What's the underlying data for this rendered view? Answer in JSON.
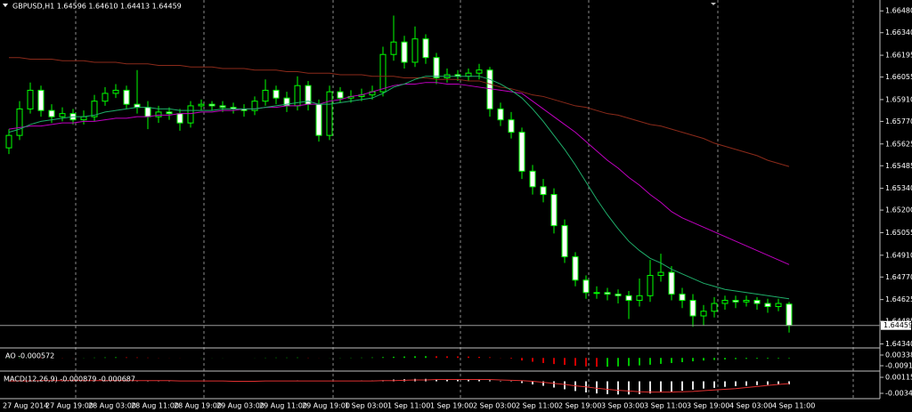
{
  "chart_data": [
    {
      "type": "candlestick",
      "title": "GBPUSD,H1  1.64596 1.64610 1.64413 1.64459",
      "categories": [
        "27 Aug 2014",
        null,
        null,
        null,
        "27 Aug 19:00",
        null,
        null,
        null,
        "28 Aug 03:00",
        null,
        null,
        null,
        "28 Aug 11:00",
        null,
        null,
        null,
        "28 Aug 19:00",
        null,
        null,
        null,
        "29 Aug 03:00",
        null,
        null,
        null,
        "29 Aug 11:00",
        null,
        null,
        null,
        "29 Aug 19:00",
        null,
        null,
        null,
        "1 Sep 03:00",
        null,
        null,
        null,
        "1 Sep 11:00",
        null,
        null,
        null,
        "1 Sep 19:00",
        null,
        null,
        null,
        "2 Sep 03:00",
        null,
        null,
        null,
        "2 Sep 11:00",
        null,
        null,
        null,
        "2 Sep 19:00",
        null,
        null,
        null,
        "3 Sep 03:00",
        null,
        null,
        null,
        "3 Sep 11:00",
        null,
        null,
        null,
        "3 Sep 19:00",
        null,
        null,
        null,
        "4 Sep 03:00",
        null,
        null,
        null,
        "4 Sep 11:00",
        null
      ],
      "open": [
        1.656,
        1.6568,
        1.6585,
        1.6597,
        1.6584,
        1.658,
        1.6582,
        1.6578,
        1.658,
        1.659,
        1.6595,
        1.6597,
        1.6588,
        1.6586,
        1.658,
        1.6583,
        1.6582,
        1.6576,
        1.6587,
        1.6588,
        1.6587,
        1.6586,
        1.6585,
        1.6584,
        1.659,
        1.6597,
        1.6592,
        1.6587,
        1.66,
        1.6588,
        1.6568,
        1.6596,
        1.6592,
        1.6593,
        1.6594,
        1.6596,
        1.662,
        1.6628,
        1.6615,
        1.663,
        1.6618,
        1.6605,
        1.6607,
        1.6606,
        1.6608,
        1.661,
        1.6585,
        1.6578,
        1.657,
        1.6545,
        1.6535,
        1.653,
        1.651,
        1.649,
        1.6475,
        1.6467,
        1.6467,
        1.6466,
        1.6465,
        1.6462,
        1.6465,
        1.6478,
        1.648,
        1.6466,
        1.6462,
        1.6452,
        1.6455,
        1.646,
        1.6462,
        1.6461,
        1.6462,
        1.646,
        1.6458,
        1.64596
      ],
      "high": [
        1.6572,
        1.659,
        1.6602,
        1.66,
        1.6588,
        1.6586,
        1.6585,
        1.6584,
        1.6594,
        1.6599,
        1.6601,
        1.66,
        1.661,
        1.659,
        1.6587,
        1.6586,
        1.6585,
        1.659,
        1.6591,
        1.659,
        1.659,
        1.6589,
        1.6588,
        1.6593,
        1.6604,
        1.66,
        1.6596,
        1.6606,
        1.6603,
        1.6591,
        1.66,
        1.6599,
        1.6597,
        1.6598,
        1.66,
        1.6625,
        1.6645,
        1.6632,
        1.6638,
        1.6633,
        1.6621,
        1.6611,
        1.661,
        1.6611,
        1.6614,
        1.6612,
        1.6589,
        1.6583,
        1.6573,
        1.6549,
        1.654,
        1.6534,
        1.6514,
        1.6493,
        1.6478,
        1.6471,
        1.647,
        1.6469,
        1.6468,
        1.6476,
        1.6488,
        1.6492,
        1.6484,
        1.647,
        1.6466,
        1.6459,
        1.6464,
        1.6465,
        1.6465,
        1.6465,
        1.6464,
        1.6463,
        1.6463,
        1.6461
      ],
      "low": [
        1.6556,
        1.6565,
        1.6582,
        1.658,
        1.6576,
        1.6577,
        1.6575,
        1.6575,
        1.6577,
        1.6587,
        1.6592,
        1.6585,
        1.6582,
        1.6572,
        1.6576,
        1.6578,
        1.6571,
        1.6573,
        1.6584,
        1.6584,
        1.6583,
        1.6582,
        1.658,
        1.6581,
        1.6587,
        1.6588,
        1.6583,
        1.6584,
        1.6584,
        1.6564,
        1.6565,
        1.6589,
        1.6589,
        1.659,
        1.6591,
        1.6593,
        1.6616,
        1.6611,
        1.6612,
        1.6614,
        1.6601,
        1.6602,
        1.6603,
        1.6603,
        1.6604,
        1.658,
        1.6574,
        1.6566,
        1.654,
        1.653,
        1.6525,
        1.6505,
        1.6486,
        1.6471,
        1.6463,
        1.6463,
        1.6462,
        1.646,
        1.645,
        1.6458,
        1.6461,
        1.6474,
        1.6462,
        1.6457,
        1.6445,
        1.6446,
        1.6451,
        1.6456,
        1.6457,
        1.6458,
        1.6456,
        1.6454,
        1.6455,
        1.64413
      ],
      "close": [
        1.6568,
        1.6585,
        1.6597,
        1.6584,
        1.658,
        1.6582,
        1.6578,
        1.658,
        1.659,
        1.6595,
        1.6597,
        1.6588,
        1.6586,
        1.658,
        1.6583,
        1.6582,
        1.6576,
        1.6587,
        1.6588,
        1.6587,
        1.6586,
        1.6585,
        1.6584,
        1.659,
        1.6597,
        1.6592,
        1.6587,
        1.66,
        1.6588,
        1.6568,
        1.6596,
        1.6592,
        1.6593,
        1.6594,
        1.6596,
        1.662,
        1.6628,
        1.6615,
        1.663,
        1.6618,
        1.6605,
        1.6607,
        1.6606,
        1.6608,
        1.661,
        1.6585,
        1.6578,
        1.657,
        1.6545,
        1.6535,
        1.653,
        1.651,
        1.649,
        1.6475,
        1.6467,
        1.6467,
        1.6466,
        1.6465,
        1.6462,
        1.6465,
        1.6478,
        1.648,
        1.6466,
        1.6462,
        1.6452,
        1.6455,
        1.646,
        1.6462,
        1.6461,
        1.6462,
        1.646,
        1.6458,
        1.646,
        1.64459
      ],
      "series": [
        {
          "color": "#8b2a1a",
          "values": [
            1.6618,
            1.6618,
            1.6617,
            1.6617,
            1.6617,
            1.6616,
            1.6616,
            1.6616,
            1.6615,
            1.6615,
            1.6615,
            1.6614,
            1.6614,
            1.6614,
            1.6613,
            1.6613,
            1.6613,
            1.6612,
            1.6612,
            1.6612,
            1.6611,
            1.6611,
            1.6611,
            1.661,
            1.661,
            1.661,
            1.6609,
            1.6609,
            1.6608,
            1.6608,
            1.6608,
            1.6607,
            1.6607,
            1.6607,
            1.6606,
            1.6606,
            1.6606,
            1.6605,
            1.6605,
            1.6605,
            1.6604,
            1.6604,
            1.6604,
            1.6603,
            1.6603,
            1.6601,
            1.6599,
            1.6598,
            1.6596,
            1.6594,
            1.6593,
            1.6591,
            1.6589,
            1.6587,
            1.6586,
            1.6584,
            1.6582,
            1.6581,
            1.6579,
            1.6577,
            1.6575,
            1.6574,
            1.6572,
            1.657,
            1.6568,
            1.6566,
            1.6563,
            1.6561,
            1.6559,
            1.6557,
            1.6555,
            1.6552,
            1.655,
            1.6548
          ]
        },
        {
          "color": "#c000c0",
          "values": [
            1.6572,
            1.6573,
            1.6574,
            1.6574,
            1.6575,
            1.6576,
            1.6576,
            1.6577,
            1.6577,
            1.6578,
            1.6579,
            1.6579,
            1.658,
            1.658,
            1.6581,
            1.6581,
            1.6582,
            1.6582,
            1.6583,
            1.6583,
            1.6584,
            1.6584,
            1.6585,
            1.6585,
            1.6586,
            1.6586,
            1.6587,
            1.6587,
            1.6588,
            1.6588,
            1.659,
            1.6591,
            1.6593,
            1.6594,
            1.6596,
            1.6598,
            1.66,
            1.6601,
            1.6601,
            1.6602,
            1.6602,
            1.6601,
            1.6601,
            1.66,
            1.6599,
            1.6598,
            1.6597,
            1.6596,
            1.6595,
            1.659,
            1.6585,
            1.658,
            1.6575,
            1.657,
            1.6564,
            1.6558,
            1.6552,
            1.6547,
            1.6541,
            1.6536,
            1.653,
            1.6525,
            1.6519,
            1.6515,
            1.6512,
            1.6509,
            1.6506,
            1.6503,
            1.65,
            1.6497,
            1.6494,
            1.6491,
            1.6488,
            1.6485
          ]
        },
        {
          "color": "#1fae6a",
          "values": [
            1.657,
            1.6572,
            1.6575,
            1.6577,
            1.6578,
            1.6579,
            1.658,
            1.658,
            1.6581,
            1.6583,
            1.6584,
            1.6585,
            1.6586,
            1.6586,
            1.6585,
            1.6585,
            1.6584,
            1.6584,
            1.6584,
            1.6584,
            1.6585,
            1.6585,
            1.6585,
            1.6585,
            1.6586,
            1.6587,
            1.6588,
            1.6589,
            1.659,
            1.6588,
            1.6588,
            1.6589,
            1.659,
            1.6591,
            1.6592,
            1.6595,
            1.6599,
            1.6601,
            1.6604,
            1.6606,
            1.6606,
            1.6606,
            1.6606,
            1.6606,
            1.6606,
            1.6604,
            1.6601,
            1.6597,
            1.6592,
            1.6585,
            1.6577,
            1.6568,
            1.6559,
            1.6549,
            1.6538,
            1.6527,
            1.6517,
            1.6508,
            1.65,
            1.6494,
            1.6489,
            1.6486,
            1.6482,
            1.6479,
            1.6476,
            1.6473,
            1.6471,
            1.6469,
            1.6468,
            1.6467,
            1.6466,
            1.6465,
            1.6464,
            1.6463
          ]
        }
      ],
      "ylim": [
        1.6432,
        1.6655
      ],
      "yticks": [
        {
          "value": 1.6648,
          "label": "1.66480"
        },
        {
          "value": 1.6634,
          "label": "1.66340"
        },
        1.66195,
        1.66055,
        {
          "value": 1.6591,
          "label": "1.65910"
        },
        {
          "value": 1.6577,
          "label": "1.65770"
        },
        1.65625,
        1.65485,
        {
          "value": 1.6534,
          "label": "1.65340"
        },
        {
          "value": 1.652,
          "label": "1.65200"
        },
        1.65055,
        {
          "value": 1.6491,
          "label": "1.64910"
        },
        {
          "value": 1.6477,
          "label": "1.64770"
        },
        1.64625,
        1.64485,
        {
          "value": 1.6434,
          "label": "1.64340"
        }
      ],
      "wick_color": "#00ff00",
      "bull_body": "#000000",
      "bear_body": "#ffffff",
      "grid": true
    },
    {
      "type": "bar",
      "title": "AO -0.000572",
      "values": [
        0.0003,
        0.0005,
        0.0006,
        0.0005,
        0.0004,
        0.0002,
        0.0001,
        0.0002,
        0.0004,
        0.0006,
        0.0008,
        0.0007,
        0.0006,
        0.0004,
        0.0002,
        0.0001,
        -0.0001,
        0,
        0.0001,
        0.0001,
        0.0001,
        0,
        0,
        0.0001,
        0.0003,
        0.0004,
        0.0004,
        0.0005,
        0.0003,
        -0.0001,
        0.0001,
        0.0002,
        0.0003,
        0.0004,
        0.0006,
        0.001,
        0.0014,
        0.0017,
        0.002,
        0.0021,
        0.002,
        0.0019,
        0.0018,
        0.0016,
        0.0013,
        0.0008,
        0.0002,
        -0.0008,
        -0.003,
        -0.0045,
        -0.006,
        -0.0072,
        -0.0082,
        -0.0092,
        -0.01,
        -0.0104,
        -0.0104,
        -0.01,
        -0.0095,
        -0.0088,
        -0.008,
        -0.007,
        -0.006,
        -0.005,
        -0.004,
        -0.0031,
        -0.0024,
        -0.0018,
        -0.0014,
        -0.0011,
        -0.0009,
        -0.0008,
        -0.0007,
        -0.000572
      ],
      "up_color": "#00c000",
      "down_color": "#d00000",
      "ylim": [
        -0.0144,
        0.0107
      ],
      "yticks": [
        0.003386,
        -0.009168
      ]
    },
    {
      "type": "macd",
      "title": "MACD(12,26,9) -0.000879 -0.000687",
      "values": [
        0.0001,
        0.0002,
        0.0003,
        0.0003,
        0.0002,
        0.0002,
        0.0001,
        0.0001,
        0.0002,
        0.0002,
        0.0003,
        0.0003,
        0.0002,
        0.0002,
        0.0001,
        0.0001,
        0,
        0,
        0,
        0,
        0,
        0,
        0,
        0.0001,
        0.0001,
        0.0001,
        0.0001,
        0.0002,
        0.0001,
        0,
        0.0001,
        0.0001,
        0.0001,
        0.0002,
        0.0002,
        0.0003,
        0.0005,
        0.0006,
        0.0007,
        0.0007,
        0.0006,
        0.0006,
        0.0005,
        0.0005,
        0.0005,
        0.0003,
        0.0001,
        -0.0001,
        -0.0005,
        -0.0009,
        -0.0013,
        -0.0018,
        -0.0023,
        -0.0028,
        -0.0032,
        -0.0035,
        -0.0037,
        -0.0038,
        -0.0038,
        -0.0037,
        -0.0035,
        -0.0032,
        -0.003,
        -0.0027,
        -0.0024,
        -0.0021,
        -0.0019,
        -0.0016,
        -0.0014,
        -0.0013,
        -0.0011,
        -0.001,
        -0.0009,
        -0.000879
      ],
      "color": "#e0e0e0",
      "series": [
        {
          "color": "#e03030",
          "values": [
            0.0001,
            0.0001,
            0.0001,
            0.0002,
            0.0002,
            0.0002,
            0.0002,
            0.0002,
            0.0002,
            0.0002,
            0.0002,
            0.0002,
            0.0002,
            0.0002,
            0.0002,
            0.0002,
            0.0001,
            0.0001,
            0.0001,
            0.0001,
            0.0001,
            0,
            0,
            0,
            0.0001,
            0.0001,
            0.0001,
            0.0001,
            0.0001,
            0.0001,
            0.0001,
            0.0001,
            0.0001,
            0.0001,
            0.0001,
            0.0002,
            0.0002,
            0.0003,
            0.0004,
            0.0004,
            0.0005,
            0.0005,
            0.0005,
            0.0005,
            0.0005,
            0.0005,
            0.0004,
            0.0003,
            0.0002,
            0,
            -0.0003,
            -0.0006,
            -0.0009,
            -0.0013,
            -0.0016,
            -0.002,
            -0.0023,
            -0.0026,
            -0.0028,
            -0.003,
            -0.0031,
            -0.0031,
            -0.0031,
            -0.003,
            -0.0029,
            -0.0027,
            -0.0025,
            -0.0023,
            -0.0021,
            -0.0018,
            -0.0015,
            -0.0012,
            -0.0009,
            -0.000687
          ]
        }
      ],
      "ylim": [
        -0.00474,
        0.00269
      ],
      "yticks": [
        0.001152,
        -0.003456
      ]
    }
  ]
}
